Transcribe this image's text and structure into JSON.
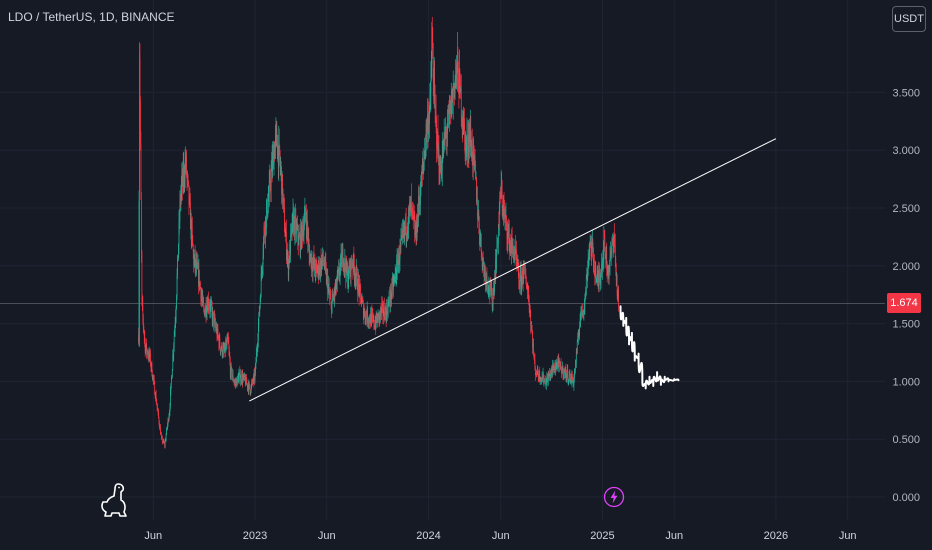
{
  "header": {
    "symbol_label": "LDO / TetherUS, 1D, BINANCE",
    "currency_button": "USDT"
  },
  "last_price": "1.674",
  "icons": {
    "logo": "tradingview-dino-logo",
    "flash": "lightning-icon"
  },
  "colors": {
    "background": "#161a25",
    "grid": "#1f2433",
    "up": "#22ab94",
    "down": "#f23645",
    "trendline": "#ffffff",
    "projection": "#ffffff",
    "accent": "#e040fb"
  },
  "chart_data": {
    "type": "candlestick",
    "symbol": "LDO / TetherUS",
    "interval": "1D",
    "exchange": "BINANCE",
    "x_ticks": [
      "Jun",
      "2023",
      "Jun",
      "2024",
      "Jun",
      "2025",
      "Jun",
      "2026",
      "Jun"
    ],
    "x_tick_dates": [
      "2022-06-01",
      "2023-01-01",
      "2023-06-01",
      "2024-01-01",
      "2024-06-01",
      "2025-01-01",
      "2025-06-01",
      "2026-01-01",
      "2026-06-01"
    ],
    "y_ticks": [
      "0.000",
      "0.500",
      "1.000",
      "1.500",
      "2.000",
      "2.500",
      "3.000",
      "3.500"
    ],
    "ylim": [
      -0.08,
      4.2
    ],
    "price_path": [
      [
        "2022-05-01",
        1.4
      ],
      [
        "2022-05-03",
        3.85
      ],
      [
        "2022-05-08",
        1.65
      ],
      [
        "2022-05-15",
        1.3
      ],
      [
        "2022-05-25",
        1.2
      ],
      [
        "2022-06-05",
        0.9
      ],
      [
        "2022-06-18",
        0.5
      ],
      [
        "2022-06-25",
        0.45
      ],
      [
        "2022-07-05",
        0.75
      ],
      [
        "2022-07-18",
        1.6
      ],
      [
        "2022-07-28",
        2.6
      ],
      [
        "2022-08-08",
        2.9
      ],
      [
        "2022-08-18",
        2.4
      ],
      [
        "2022-08-25",
        2.05
      ],
      [
        "2022-09-05",
        1.9
      ],
      [
        "2022-09-15",
        1.6
      ],
      [
        "2022-09-25",
        1.7
      ],
      [
        "2022-10-08",
        1.5
      ],
      [
        "2022-10-20",
        1.3
      ],
      [
        "2022-10-28",
        1.25
      ],
      [
        "2022-11-05",
        1.35
      ],
      [
        "2022-11-10",
        1.1
      ],
      [
        "2022-11-20",
        0.98
      ],
      [
        "2022-12-01",
        1.05
      ],
      [
        "2022-12-12",
        1.0
      ],
      [
        "2022-12-22",
        0.93
      ],
      [
        "2023-01-01",
        1.05
      ],
      [
        "2023-01-10",
        1.6
      ],
      [
        "2023-01-20",
        2.3
      ],
      [
        "2023-01-30",
        2.6
      ],
      [
        "2023-02-10",
        3.0
      ],
      [
        "2023-02-15",
        3.1
      ],
      [
        "2023-02-25",
        2.8
      ],
      [
        "2023-03-05",
        2.3
      ],
      [
        "2023-03-12",
        2.0
      ],
      [
        "2023-03-22",
        2.4
      ],
      [
        "2023-04-05",
        2.2
      ],
      [
        "2023-04-18",
        2.45
      ],
      [
        "2023-04-25",
        2.1
      ],
      [
        "2023-05-10",
        1.95
      ],
      [
        "2023-05-25",
        2.05
      ],
      [
        "2023-06-10",
        1.65
      ],
      [
        "2023-06-20",
        1.8
      ],
      [
        "2023-07-05",
        2.1
      ],
      [
        "2023-07-15",
        1.9
      ],
      [
        "2023-07-25",
        2.05
      ],
      [
        "2023-08-10",
        1.75
      ],
      [
        "2023-08-18",
        1.6
      ],
      [
        "2023-08-30",
        1.55
      ],
      [
        "2023-09-10",
        1.5
      ],
      [
        "2023-09-25",
        1.6
      ],
      [
        "2023-10-05",
        1.6
      ],
      [
        "2023-10-20",
        1.85
      ],
      [
        "2023-11-01",
        2.1
      ],
      [
        "2023-11-12",
        2.3
      ],
      [
        "2023-11-25",
        2.5
      ],
      [
        "2023-12-05",
        2.25
      ],
      [
        "2023-12-12",
        2.55
      ],
      [
        "2023-12-22",
        2.9
      ],
      [
        "2023-12-28",
        3.2
      ],
      [
        "2024-01-05",
        3.4
      ],
      [
        "2024-01-08",
        3.95
      ],
      [
        "2024-01-15",
        3.3
      ],
      [
        "2024-01-25",
        2.8
      ],
      [
        "2024-02-05",
        3.1
      ],
      [
        "2024-02-15",
        3.3
      ],
      [
        "2024-02-25",
        3.6
      ],
      [
        "2024-03-02",
        3.7
      ],
      [
        "2024-03-10",
        3.4
      ],
      [
        "2024-03-20",
        3.0
      ],
      [
        "2024-03-28",
        3.15
      ],
      [
        "2024-04-08",
        2.8
      ],
      [
        "2024-04-15",
        2.4
      ],
      [
        "2024-04-25",
        2.0
      ],
      [
        "2024-05-05",
        1.85
      ],
      [
        "2024-05-15",
        1.7
      ],
      [
        "2024-05-25",
        2.2
      ],
      [
        "2024-06-01",
        2.65
      ],
      [
        "2024-06-10",
        2.4
      ],
      [
        "2024-06-20",
        2.2
      ],
      [
        "2024-07-01",
        2.1
      ],
      [
        "2024-07-10",
        1.85
      ],
      [
        "2024-07-20",
        1.95
      ],
      [
        "2024-07-28",
        1.8
      ],
      [
        "2024-08-05",
        1.45
      ],
      [
        "2024-08-12",
        1.1
      ],
      [
        "2024-08-22",
        1.05
      ],
      [
        "2024-09-05",
        1.0
      ],
      [
        "2024-09-18",
        1.1
      ],
      [
        "2024-09-28",
        1.15
      ],
      [
        "2024-10-08",
        1.1
      ],
      [
        "2024-10-20",
        1.05
      ],
      [
        "2024-11-01",
        1.0
      ],
      [
        "2024-11-08",
        1.25
      ],
      [
        "2024-11-15",
        1.55
      ],
      [
        "2024-11-25",
        1.7
      ],
      [
        "2024-12-05",
        2.2
      ],
      [
        "2024-12-12",
        2.1
      ],
      [
        "2024-12-20",
        1.85
      ],
      [
        "2024-12-28",
        1.95
      ],
      [
        "2025-01-05",
        2.2
      ],
      [
        "2025-01-12",
        1.95
      ],
      [
        "2025-01-20",
        2.1
      ],
      [
        "2025-01-25",
        2.3
      ],
      [
        "2025-01-30",
        1.9
      ],
      [
        "2025-02-04",
        1.674
      ]
    ],
    "trendline": {
      "start": [
        "2022-12-20",
        0.83
      ],
      "end": [
        "2026-01-01",
        3.1
      ]
    },
    "projection_path": [
      [
        "2025-02-08",
        1.65
      ],
      [
        "2025-02-14",
        1.48
      ],
      [
        "2025-02-20",
        1.55
      ],
      [
        "2025-02-26",
        1.32
      ],
      [
        "2025-03-04",
        1.42
      ],
      [
        "2025-03-10",
        1.18
      ],
      [
        "2025-03-18",
        1.24
      ],
      [
        "2025-03-26",
        1.0
      ],
      [
        "2025-04-02",
        0.94
      ],
      [
        "2025-04-10",
        1.04
      ],
      [
        "2025-04-18",
        0.96
      ],
      [
        "2025-04-26",
        1.08
      ],
      [
        "2025-05-04",
        0.97
      ],
      [
        "2025-05-12",
        1.04
      ],
      [
        "2025-05-20",
        1.0
      ],
      [
        "2025-06-01",
        1.02
      ],
      [
        "2025-06-10",
        1.01
      ]
    ],
    "last_price": 1.674
  }
}
